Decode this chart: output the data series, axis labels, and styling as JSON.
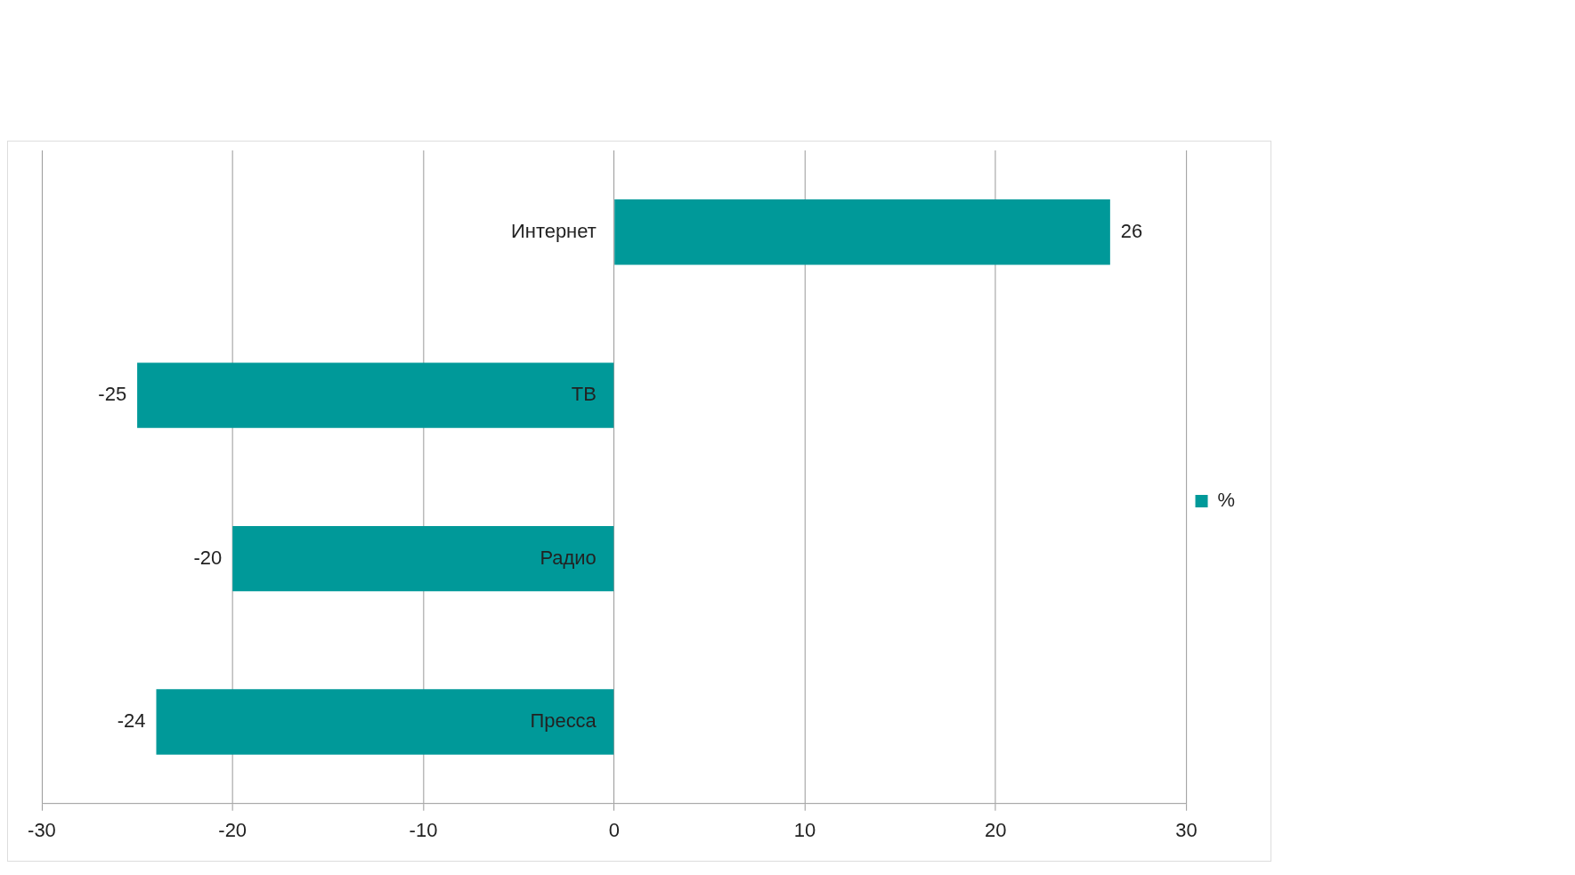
{
  "chart_data": {
    "type": "bar",
    "orientation": "horizontal",
    "categories": [
      "Интернет",
      "ТВ",
      "Радио",
      "Пресса"
    ],
    "series": [
      {
        "name": "%",
        "color": "#009999",
        "values": [
          26,
          -25,
          -20,
          -24
        ]
      }
    ],
    "xlim": [
      -30,
      30
    ],
    "xticks": [
      -30,
      -20,
      -10,
      0,
      10,
      20,
      30
    ],
    "grid": "x",
    "legend": "right",
    "data_labels": true
  }
}
